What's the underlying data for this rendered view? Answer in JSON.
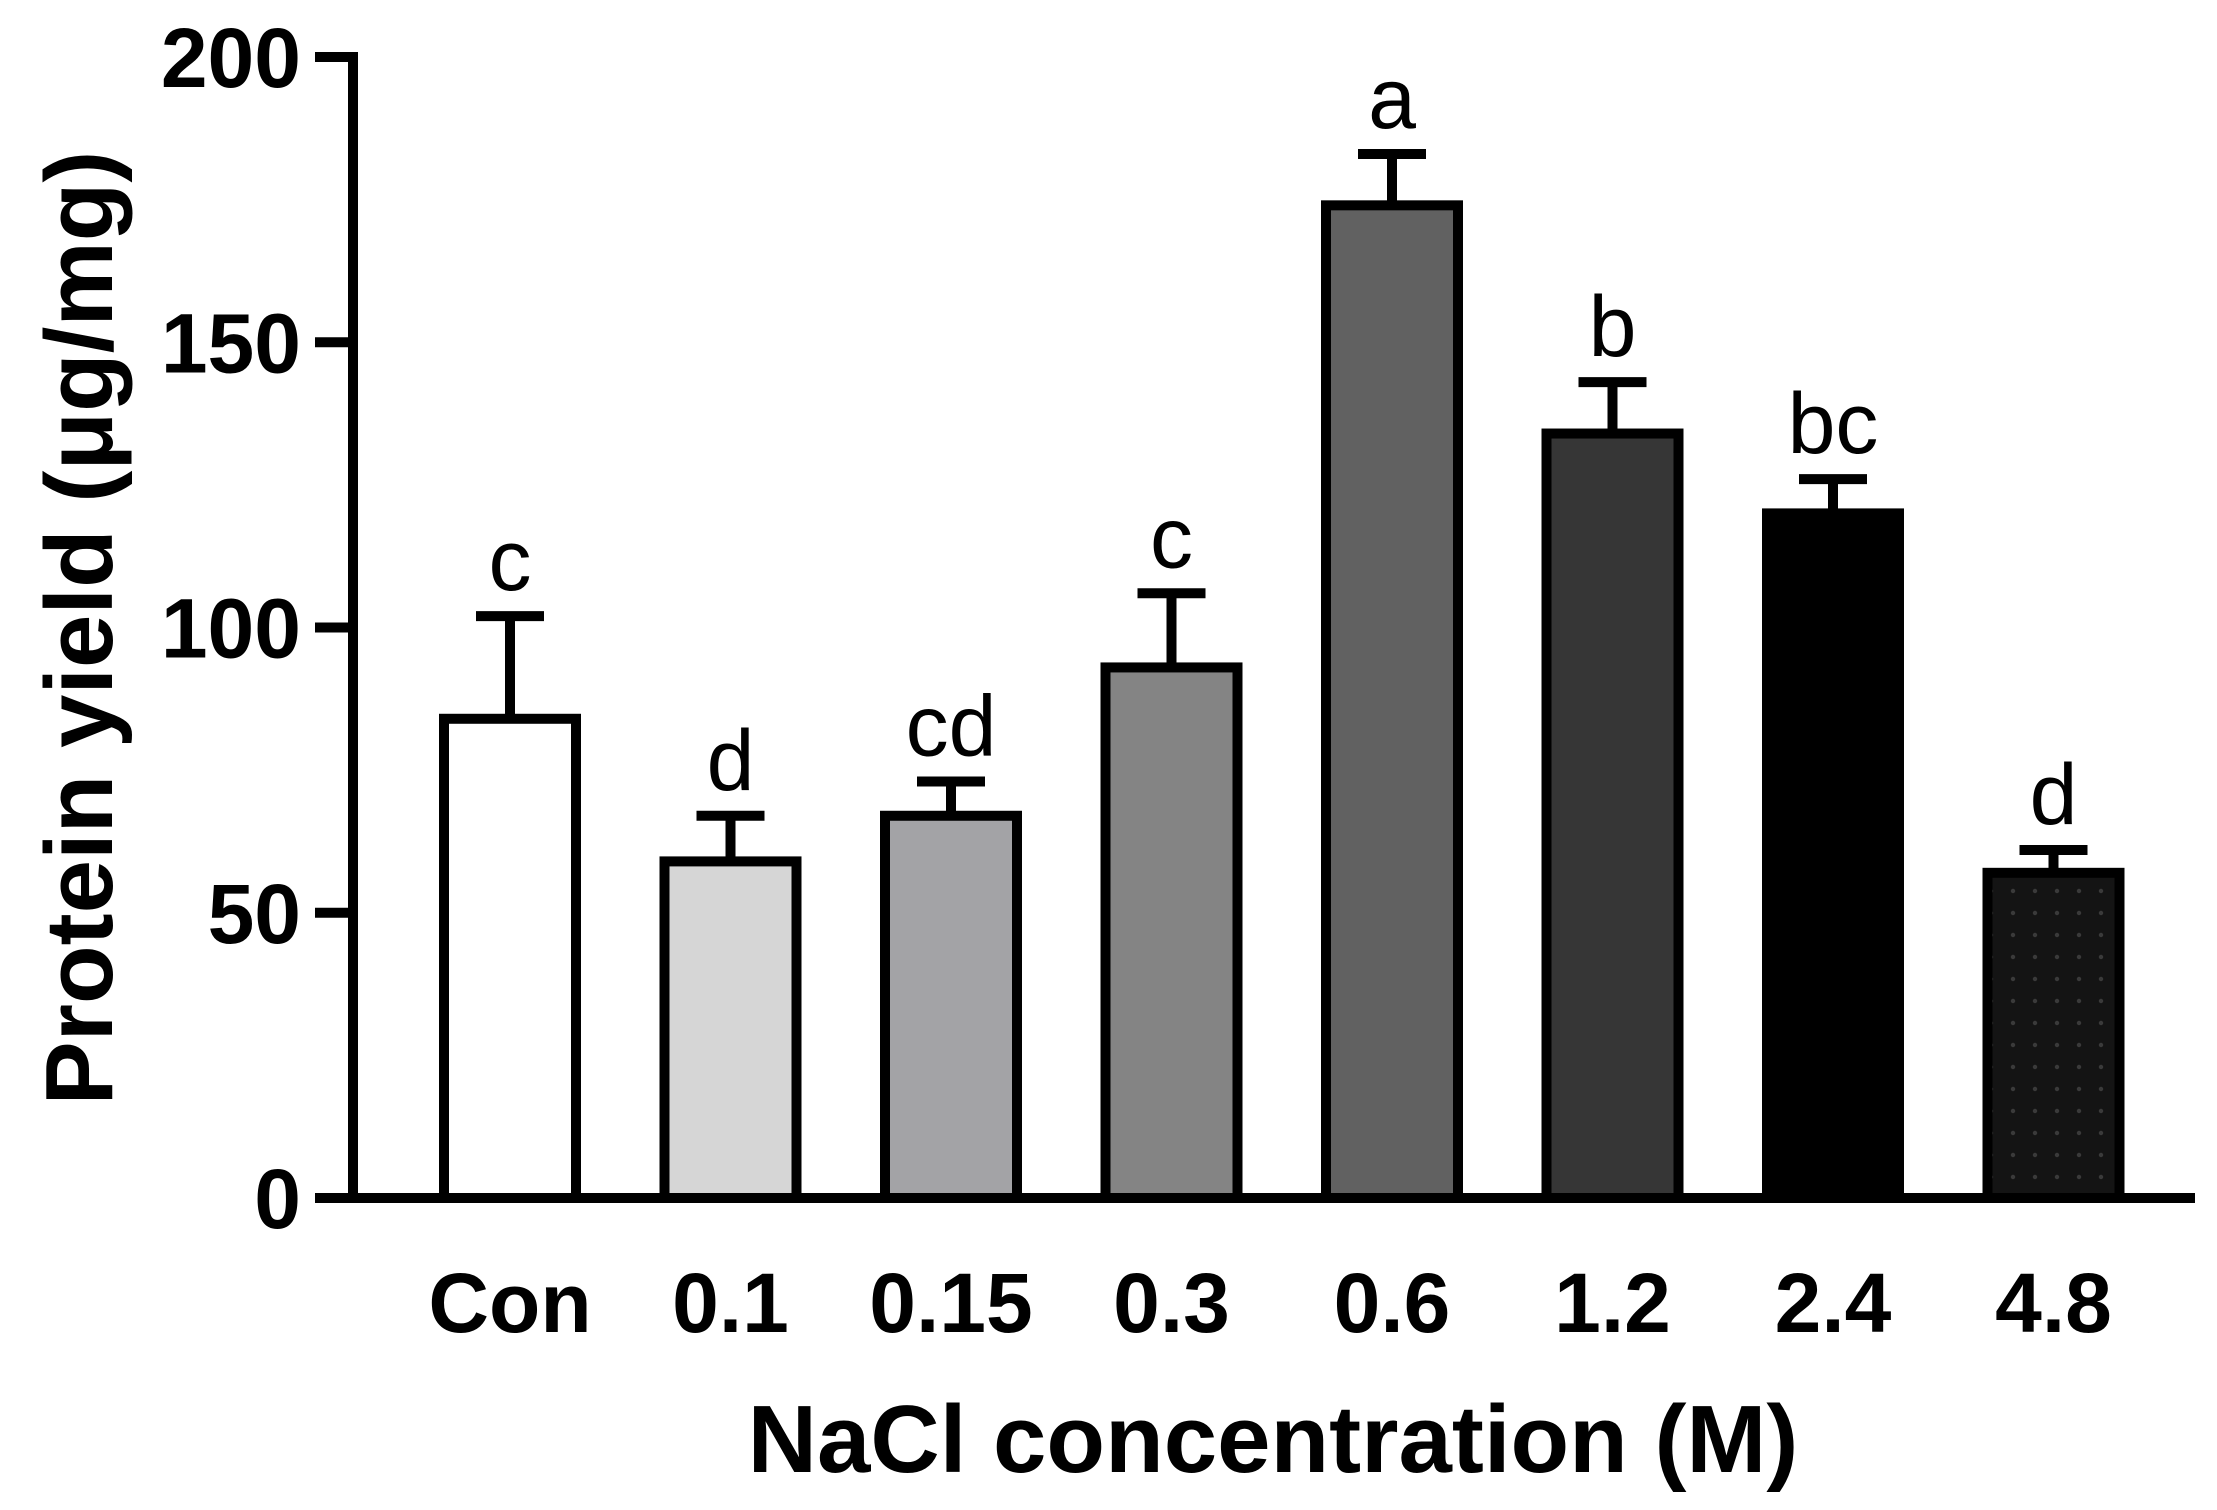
{
  "chart_data": {
    "type": "bar",
    "categories": [
      "Con",
      "0.1",
      "0.15",
      "0.3",
      "0.6",
      "1.2",
      "2.4",
      "4.8"
    ],
    "values": [
      84,
      59,
      67,
      93,
      174,
      134,
      120,
      57
    ],
    "errors": [
      18,
      8,
      6,
      13,
      9,
      9,
      6,
      4
    ],
    "significance": [
      "c",
      "d",
      "cd",
      "c",
      "a",
      "b",
      "bc",
      "d"
    ],
    "bar_colors": [
      "#ffffff",
      "#d6d6d6",
      "#a3a3a6",
      "#848484",
      "#616161",
      "#363636",
      "#000000",
      "#141414"
    ],
    "bar_patterns": [
      "none",
      "none",
      "none",
      "none",
      "none",
      "none",
      "none",
      "dots"
    ],
    "xlabel": "NaCl concentration (M)",
    "ylabel": "Protein yield (μg/mg)",
    "ylim": [
      0,
      200
    ],
    "yticks": [
      0,
      50,
      100,
      150,
      200
    ],
    "grid": false
  }
}
